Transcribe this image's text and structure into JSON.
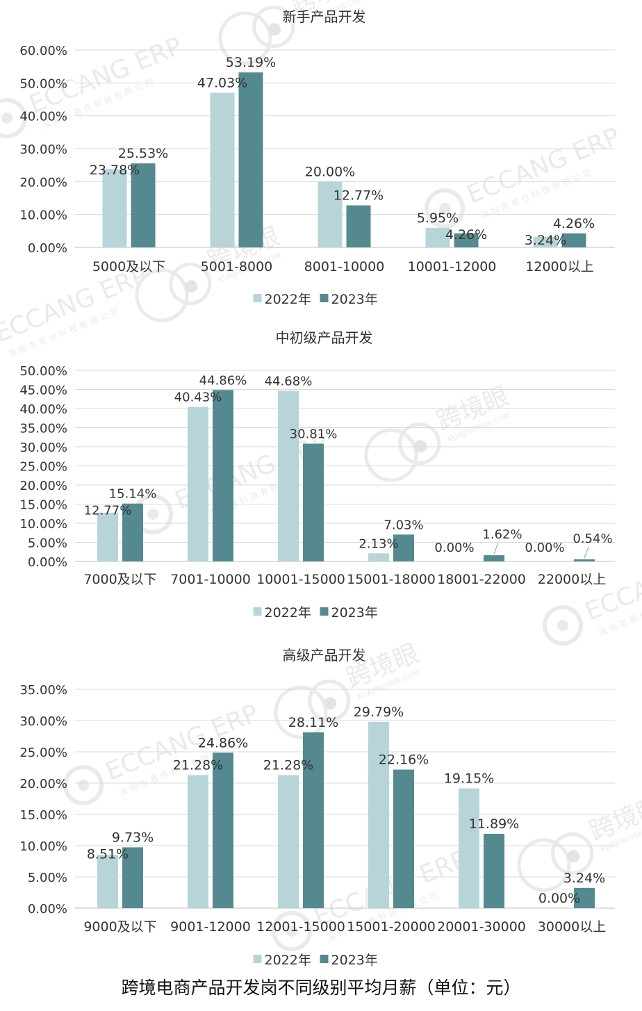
{
  "caption": "跨境电商产品开发岗不同级别平均月薪（单位：元）",
  "watermarks": {
    "eccang_text": "ECCANG ERP",
    "eccang_sub": "深 圳 市 易 仓 科 技 有 限 公 司",
    "kjy_text": "跨境眼",
    "kjy_sub": "KUAJINGYAN.COM"
  },
  "colors": {
    "series_2022": "#b7d5d8",
    "series_2023": "#548a8f",
    "grid": "#d9d9d9",
    "text": "#333333"
  },
  "chart_data": [
    {
      "type": "bar",
      "title": "新手产品开发",
      "categories": [
        "5000及以下",
        "5001-8000",
        "8001-10000",
        "10001-12000",
        "12000以上"
      ],
      "series": [
        {
          "name": "2022年",
          "values": [
            23.78,
            47.03,
            20.0,
            5.95,
            3.24
          ],
          "labels": [
            "23.78%",
            "47.03%",
            "20.00%",
            "5.95%",
            "3.24%"
          ]
        },
        {
          "name": "2023年",
          "values": [
            25.53,
            53.19,
            12.77,
            4.26,
            4.26
          ],
          "labels": [
            "25.53%",
            "53.19%",
            "12.77%",
            "4.26%",
            "4.26%"
          ]
        }
      ],
      "ylim": [
        0,
        60
      ],
      "yticks": [
        "0.00%",
        "10.00%",
        "20.00%",
        "30.00%",
        "40.00%",
        "50.00%",
        "60.00%"
      ],
      "grid": true,
      "legend": "bottom"
    },
    {
      "type": "bar",
      "title": "中初级产品开发",
      "categories": [
        "7000及以下",
        "7001-10000",
        "10001-15000",
        "15001-18000",
        "18001-22000",
        "22000以上"
      ],
      "series": [
        {
          "name": "2022年",
          "values": [
            12.77,
            40.43,
            44.68,
            2.13,
            0.0,
            0.0
          ],
          "labels": [
            "12.77%",
            "40.43%",
            "44.68%",
            "2.13%",
            "0.00%",
            "0.00%"
          ]
        },
        {
          "name": "2023年",
          "values": [
            15.14,
            44.86,
            30.81,
            7.03,
            1.62,
            0.54
          ],
          "labels": [
            "15.14%",
            "44.86%",
            "30.81%",
            "7.03%",
            "1.62%",
            "0.54%"
          ]
        }
      ],
      "ylim": [
        0,
        50
      ],
      "yticks": [
        "0.00%",
        "5.00%",
        "10.00%",
        "15.00%",
        "20.00%",
        "25.00%",
        "30.00%",
        "35.00%",
        "40.00%",
        "45.00%",
        "50.00%"
      ],
      "grid": true,
      "legend": "bottom"
    },
    {
      "type": "bar",
      "title": "高级产品开发",
      "categories": [
        "9000及以下",
        "9001-12000",
        "12001-15000",
        "15001-20000",
        "20001-30000",
        "30000以上"
      ],
      "series": [
        {
          "name": "2022年",
          "values": [
            8.51,
            21.28,
            21.28,
            29.79,
            19.15,
            0.0
          ],
          "labels": [
            "8.51%",
            "21.28%",
            "21.28%",
            "29.79%",
            "19.15%",
            "0.00%"
          ]
        },
        {
          "name": "2023年",
          "values": [
            9.73,
            24.86,
            28.11,
            22.16,
            11.89,
            3.24
          ],
          "labels": [
            "9.73%",
            "24.86%",
            "28.11%",
            "22.16%",
            "11.89%",
            "3.24%"
          ]
        }
      ],
      "ylim": [
        0,
        35
      ],
      "yticks": [
        "0.00%",
        "5.00%",
        "10.00%",
        "15.00%",
        "20.00%",
        "25.00%",
        "30.00%",
        "35.00%"
      ],
      "grid": true,
      "legend": "bottom"
    }
  ]
}
